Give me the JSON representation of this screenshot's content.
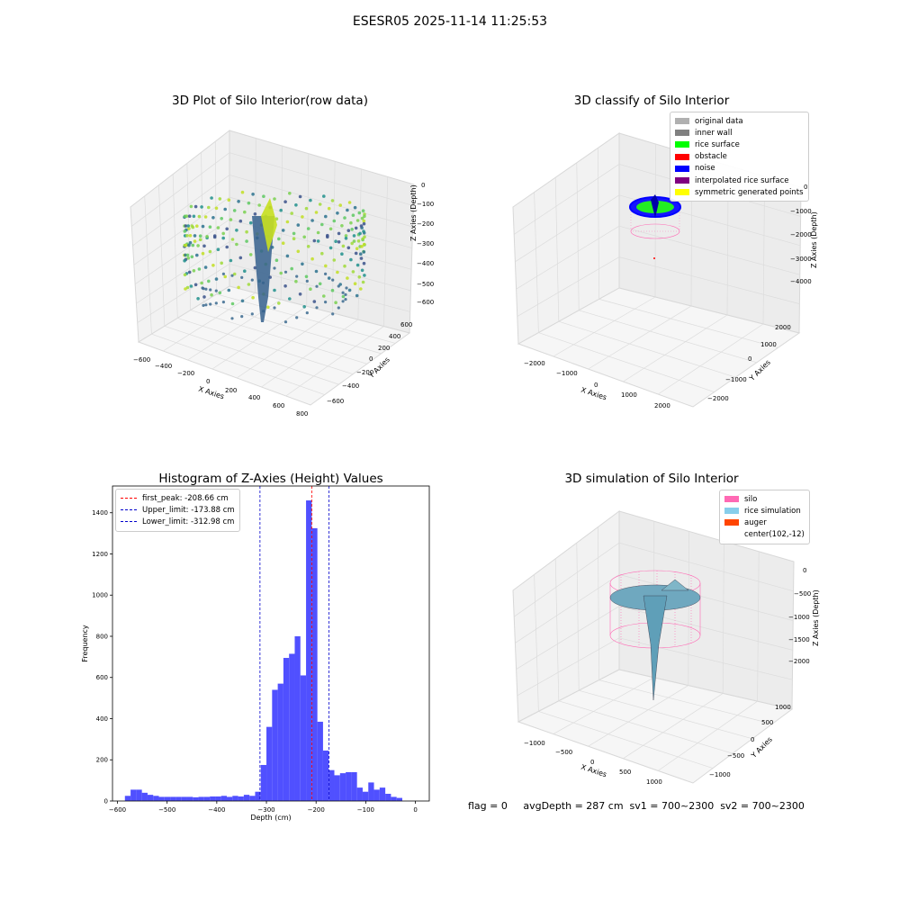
{
  "figure": {
    "suptitle": "ESESR05 2025-11-14 11:25:53",
    "footer": "flag = 0     avgDepth = 287 cm  sv1 = 700~2300  sv2 = 700~2300"
  },
  "colors": {
    "histogram_bar": "#4c4cff",
    "first_peak_line": "#ff0000",
    "limit_lines": "#0000cc"
  },
  "chart_data": [
    {
      "type": "scatter",
      "projection": "3d",
      "title": "3D Plot of Silo Interior(row data)",
      "xlabel": "X Axies",
      "ylabel": "Y Axies",
      "zlabel": "Z Axies (Depth)",
      "xticks": [
        "−600",
        "−400",
        "−200",
        "0",
        "200",
        "400",
        "600",
        "800"
      ],
      "yticks": [
        "−600",
        "−400",
        "−200",
        "0",
        "200",
        "400",
        "600"
      ],
      "zticks": [
        "0",
        "−100",
        "−200",
        "−300",
        "−400",
        "−500",
        "−600"
      ],
      "colormap": "viridis",
      "description_points": "ring of points around radius ~400 with a deep funnel near the center reaching about −600"
    },
    {
      "type": "scatter",
      "projection": "3d",
      "title": "3D classify of Silo Interior",
      "xlabel": "X Axies",
      "ylabel": "Y Axies",
      "zlabel": "Z Axies (Depth)",
      "xticks": [
        "−2000",
        "−1000",
        "0",
        "1000",
        "2000"
      ],
      "yticks": [
        "−2000",
        "−1000",
        "0",
        "1000",
        "2000"
      ],
      "zticks": [
        "0",
        "−1000",
        "−2000",
        "−3000",
        "−4000"
      ],
      "legend": [
        {
          "label": "original data",
          "color": "#b0b0b0"
        },
        {
          "label": "inner wall",
          "color": "#808080"
        },
        {
          "label": "rice surface",
          "color": "#00ff00"
        },
        {
          "label": "obstacle",
          "color": "#ff0000"
        },
        {
          "label": "noise",
          "color": "#0000ff"
        },
        {
          "label": "interpolated rice surface",
          "color": "#800080"
        },
        {
          "label": "symmetric generated points",
          "color": "#ffff00"
        }
      ],
      "legend_position": "top-right"
    },
    {
      "type": "bar",
      "title": "Histogram of Z-Axies (Height) Values",
      "xlabel": "Depth (cm)",
      "ylabel": "Frequency",
      "xlim": [
        -610,
        28
      ],
      "ylim": [
        0,
        1530
      ],
      "xticks": [
        -600,
        -500,
        -400,
        -300,
        -200,
        -100,
        0
      ],
      "xtick_labels": [
        "−600",
        "−500",
        "−400",
        "−300",
        "−200",
        "−100",
        "0"
      ],
      "yticks": [
        0,
        200,
        400,
        600,
        800,
        1000,
        1200,
        1400
      ],
      "bin_start": -585,
      "bin_width": 11.4,
      "values": [
        25,
        55,
        55,
        40,
        30,
        25,
        20,
        20,
        20,
        20,
        20,
        20,
        18,
        20,
        20,
        22,
        22,
        25,
        20,
        25,
        22,
        30,
        25,
        45,
        175,
        360,
        540,
        570,
        695,
        715,
        800,
        610,
        1460,
        1325,
        385,
        245,
        150,
        125,
        135,
        140,
        140,
        65,
        45,
        90,
        55,
        65,
        35,
        20,
        15
      ],
      "vlines": [
        {
          "x": -208.66,
          "label": "first_peak: -208.66 cm",
          "color": "#ff0000"
        },
        {
          "x": -173.88,
          "label": "Upper_limit: -173.88 cm",
          "color": "#0000cc"
        },
        {
          "x": -312.98,
          "label": "Lower_limit: -312.98 cm",
          "color": "#0000cc"
        }
      ],
      "legend_position": "top-left"
    },
    {
      "type": "surface",
      "projection": "3d",
      "title": "3D simulation of Silo Interior",
      "xlabel": "X Axies",
      "ylabel": "Y Axies",
      "zlabel": "Z Axies (Depth)",
      "xticks": [
        "−1000",
        "−500",
        "0",
        "500",
        "1000"
      ],
      "yticks": [
        "−1000",
        "−500",
        "0",
        "500",
        "1000"
      ],
      "zticks": [
        "0",
        "−500",
        "−1000",
        "−1500",
        "−2000"
      ],
      "legend": [
        {
          "label": "silo",
          "color": "#ff69b4"
        },
        {
          "label": "rice simulation",
          "color": "#87ceeb"
        },
        {
          "label": "auger",
          "color": "#ff4500"
        },
        {
          "label": "center(102,-12)",
          "color": ""
        }
      ],
      "legend_position": "top-right"
    }
  ]
}
